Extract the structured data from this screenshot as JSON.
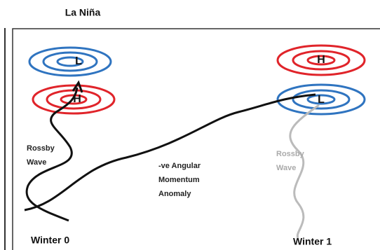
{
  "title": "La Niña",
  "systems": [
    {
      "label": "L"
    },
    {
      "label": "H"
    },
    {
      "label": "H"
    },
    {
      "label": "L"
    }
  ],
  "annotations": {
    "rossby_left": [
      "Rossby",
      "Wave"
    ],
    "momentum": [
      "-ve Angular",
      "Momentum",
      "Anomaly"
    ],
    "rossby_right": [
      "Rossby",
      "Wave"
    ]
  },
  "captions": [
    "Winter 0",
    "Winter 1"
  ]
}
